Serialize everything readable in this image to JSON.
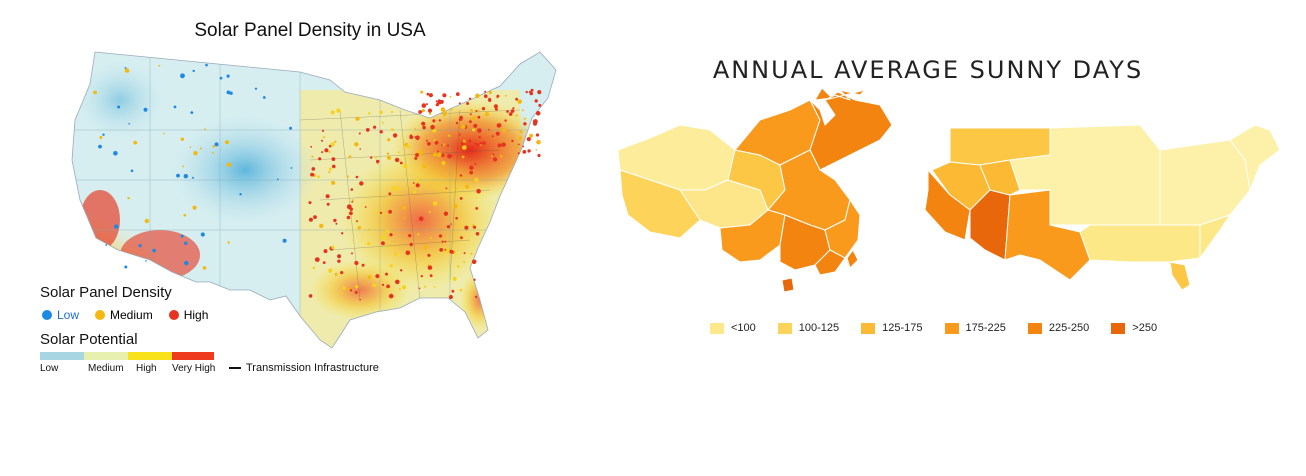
{
  "left": {
    "title": "Solar Panel Density in USA",
    "density_heading": "Solar Panel Density",
    "density_items": [
      {
        "label": "Low",
        "color": "#1e88e5",
        "text_color": "#1e6fd0"
      },
      {
        "label": "Medium",
        "color": "#f5b80f",
        "text_color": "#111111"
      },
      {
        "label": "High",
        "color": "#e53320",
        "text_color": "#111111"
      }
    ],
    "potential_heading": "Solar Potential",
    "potential_segments": [
      {
        "label": "Low",
        "color": "#a8d5e2"
      },
      {
        "label": "Medium",
        "color": "#e8f0b0"
      },
      {
        "label": "High",
        "color": "#f7e21c"
      },
      {
        "label": "Very High",
        "color": "#ee3b1f"
      }
    ],
    "transmission_label": "Transmission Infrastructure"
  },
  "right": {
    "title": "ANNUAL AVERAGE SUNNY DAYS",
    "legend": [
      {
        "label": "<100",
        "color": "#fde88a"
      },
      {
        "label": "100-125",
        "color": "#fdd35a"
      },
      {
        "label": "125-175",
        "color": "#fcb934"
      },
      {
        "label": "175-225",
        "color": "#f99a1c"
      },
      {
        "label": "225-250",
        "color": "#f3840f"
      },
      {
        "label": ">250",
        "color": "#e8670a"
      }
    ]
  }
}
